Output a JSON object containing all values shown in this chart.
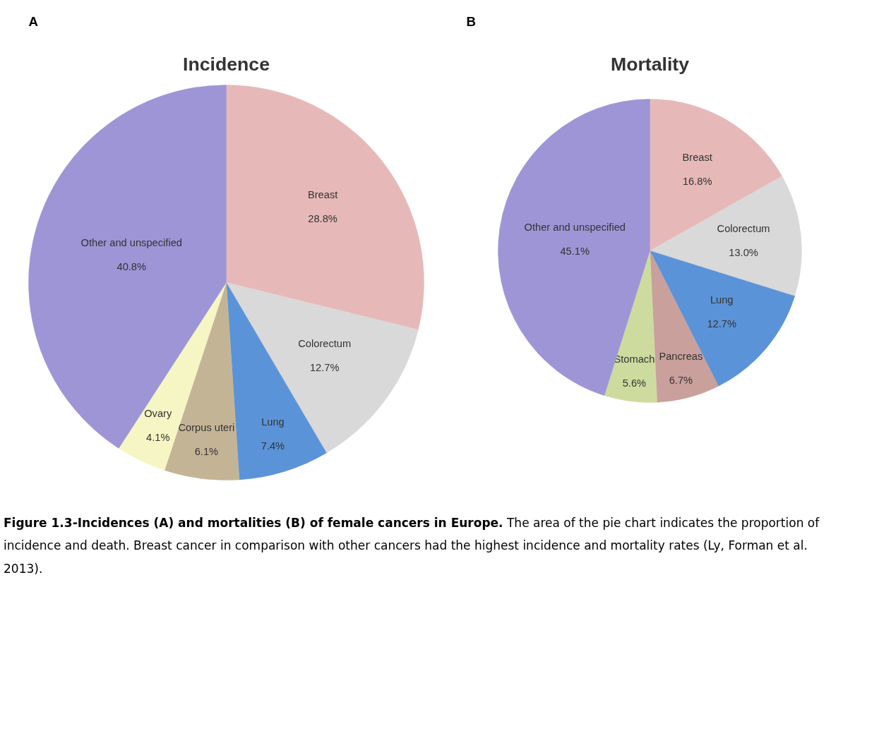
{
  "chart_data": [
    {
      "type": "pie",
      "title": "Incidence",
      "annotations": [
        "A"
      ],
      "categories": [
        "Breast",
        "Colorectum",
        "Lung",
        "Corpus uteri",
        "Ovary",
        "Other and unspecified"
      ],
      "values": [
        28.8,
        12.7,
        7.4,
        6.1,
        4.1,
        40.8
      ],
      "value_labels": [
        "28.8%",
        "12.7%",
        "7.4%",
        "6.1%",
        "4.1%",
        "40.8%"
      ],
      "colors": [
        "#e6b9b8",
        "#d9d9d9",
        "#5b93d8",
        "#c4b496",
        "#f6f6c4",
        "#9e95d6"
      ]
    },
    {
      "type": "pie",
      "title": "Mortality",
      "annotations": [
        "B",
        "Figure 1.3-Incidences (A) and mortalities (B) of female cancers in Europe.",
        "The area of the pie chart indicates the proportion of incidence and death. Breast cancer in comparison with other cancers had the highest incidence and mortality rates (Ly, Forman et al. 2013)."
      ],
      "categories": [
        "Breast",
        "Colorectum",
        "Lung",
        "Pancreas",
        "Stomach",
        "Other and unspecified"
      ],
      "values": [
        16.8,
        13.0,
        12.7,
        6.7,
        5.6,
        45.1
      ],
      "value_labels": [
        "16.8%",
        "13.0%",
        "12.7%",
        "6.7%",
        "5.6%",
        "45.1%"
      ],
      "colors": [
        "#e6b9b8",
        "#d9d9d9",
        "#5b93d8",
        "#c9a09c",
        "#cddc9e",
        "#9e95d6"
      ]
    }
  ]
}
